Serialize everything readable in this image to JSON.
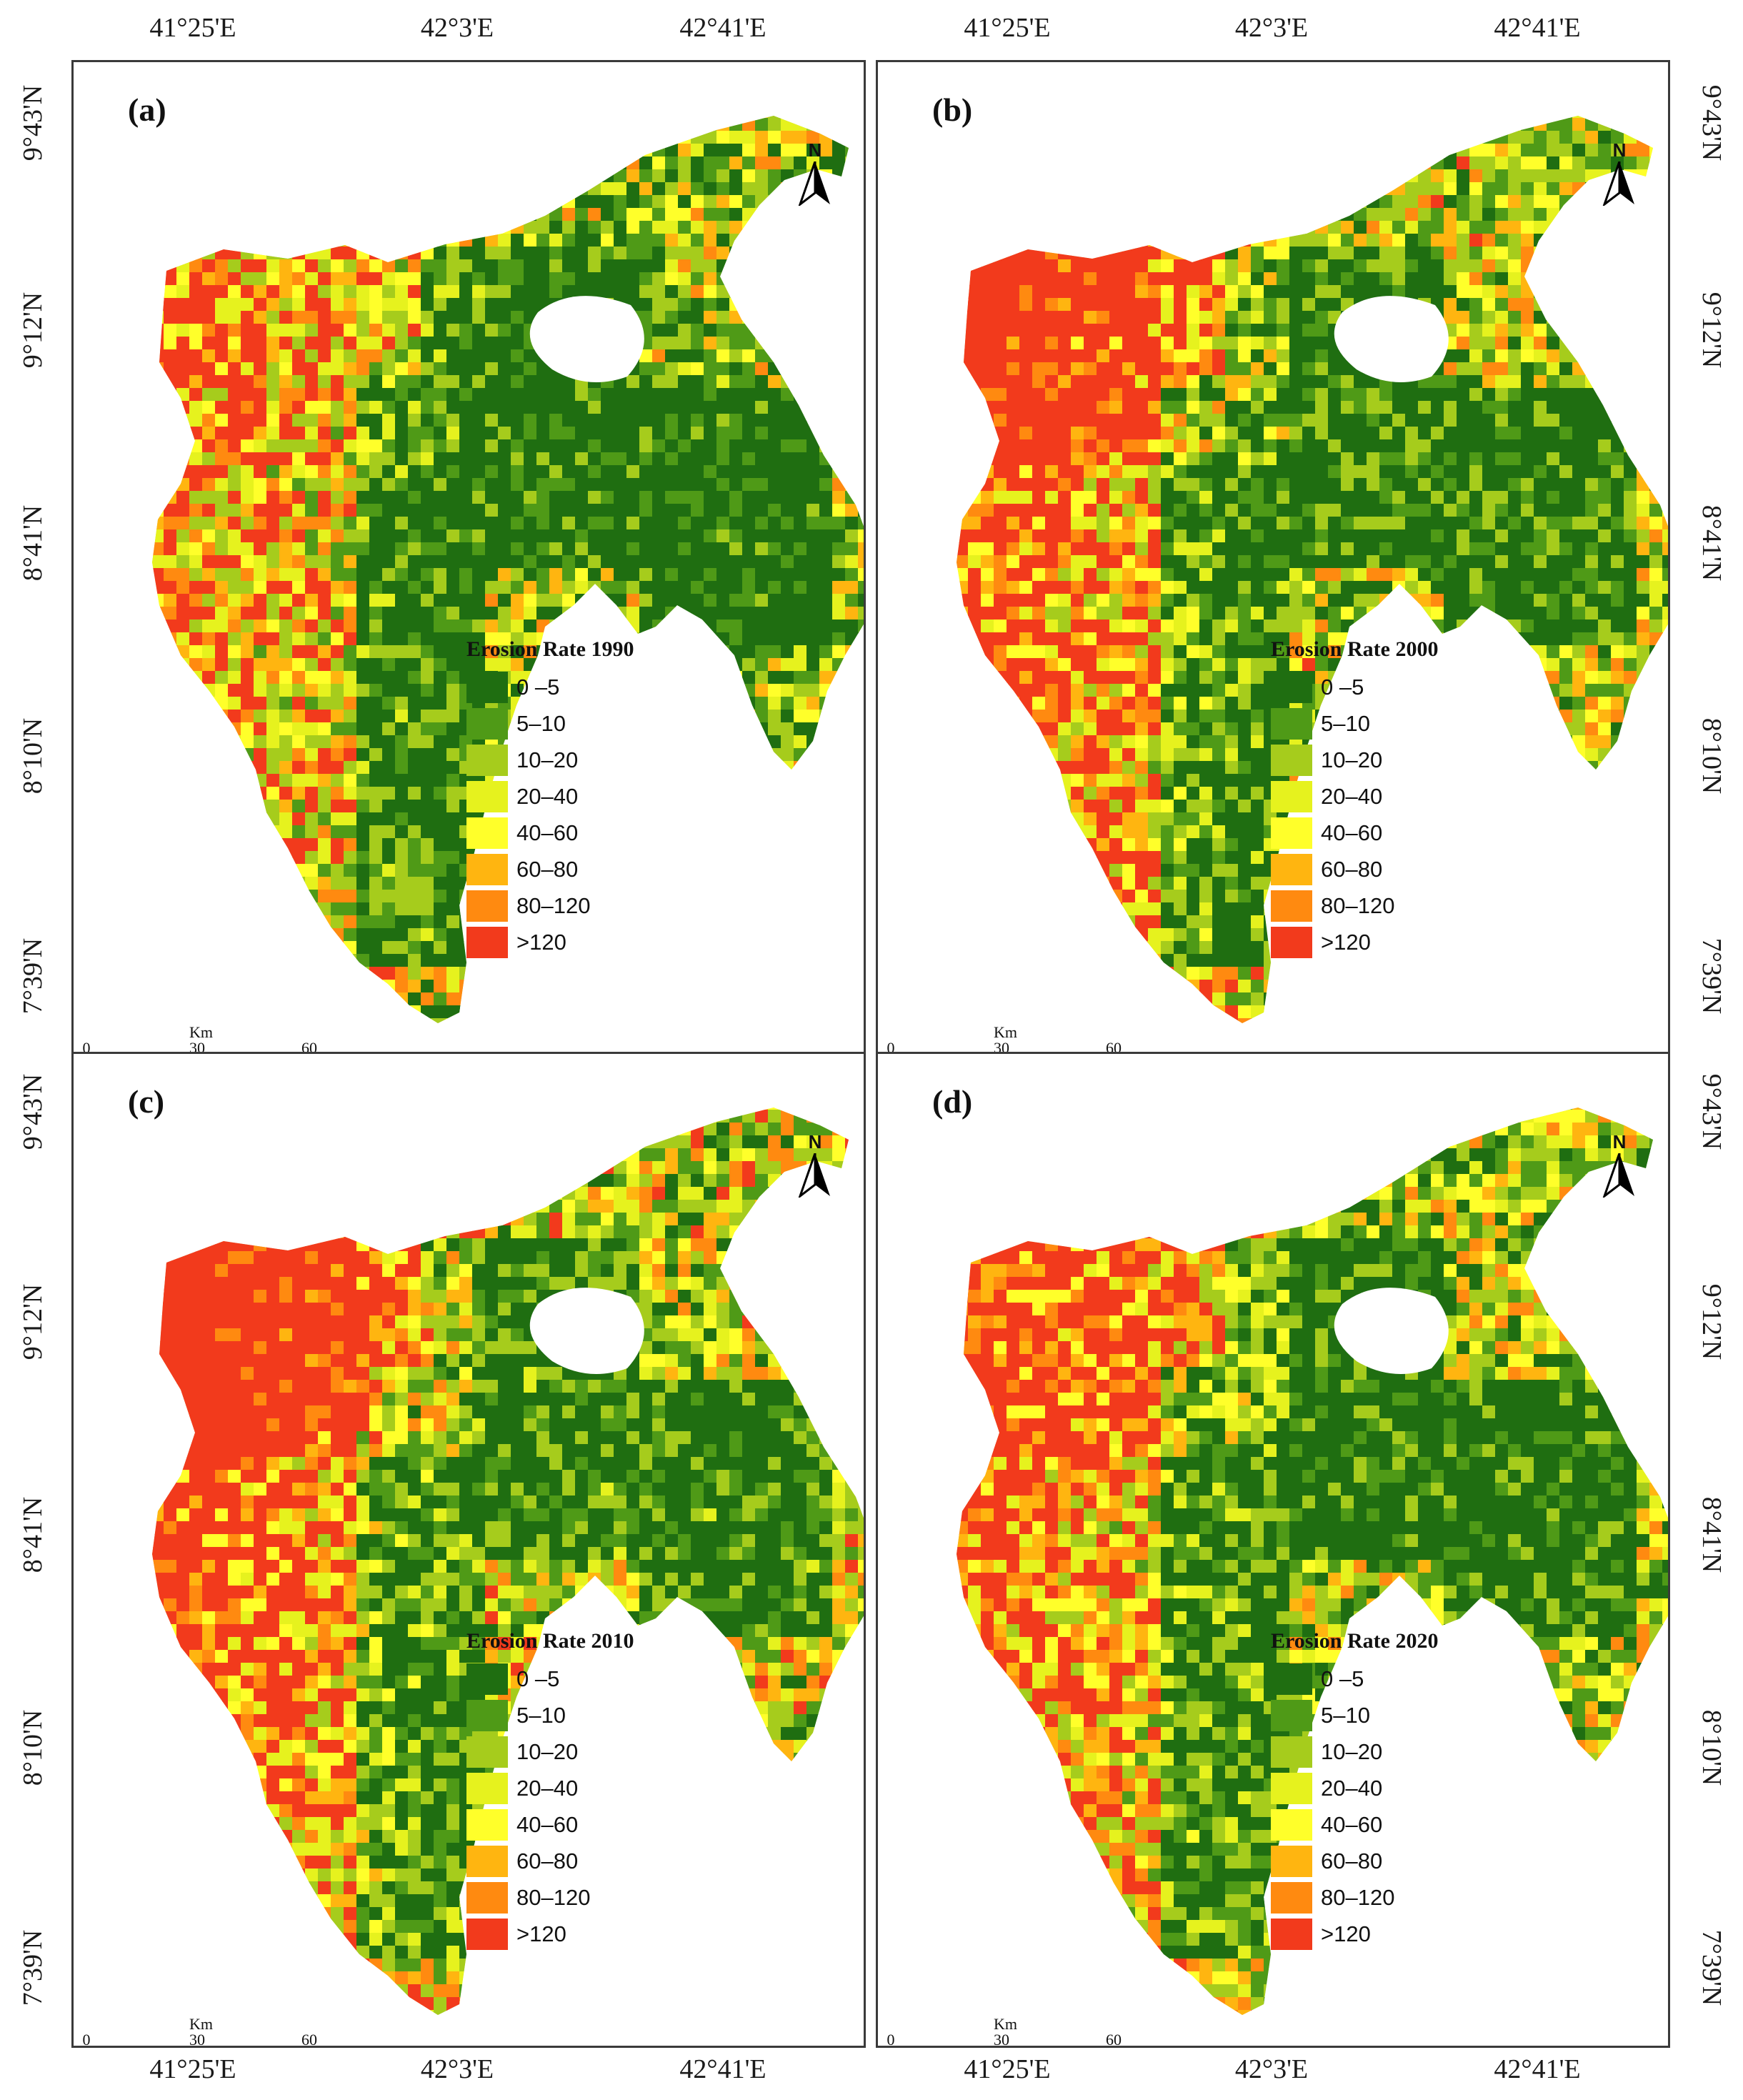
{
  "top_longitude_labels": [
    "41°25'E",
    "42°3'E",
    "42°41'E"
  ],
  "bottom_longitude_labels": [
    "41°25'E",
    "42°3'E",
    "42°41'E"
  ],
  "left_latitude_labels": [
    "9°43'N",
    "9°12'N",
    "8°41'N",
    "8°10'N",
    "7°39'N"
  ],
  "right_latitude_labels": [
    "9°43'N",
    "9°12'N",
    "8°41'N",
    "8°10'N",
    "7°39'N"
  ],
  "north_arrow": {
    "label": "N",
    "icon": "north-arrow-icon"
  },
  "scale": {
    "unit": "Km",
    "ticks": [
      "0",
      "30",
      "60"
    ]
  },
  "legend_classes": [
    {
      "label": "0 –5",
      "color": "#1f6e11"
    },
    {
      "label": "5–10",
      "color": "#4f9a17"
    },
    {
      "label": "10–20",
      "color": "#a6cc1c"
    },
    {
      "label": "20–40",
      "color": "#e6f21e"
    },
    {
      "label": "40–60",
      "color": "#ffff2a"
    },
    {
      "label": "60–80",
      "color": "#ffb510"
    },
    {
      "label": "80–120",
      "color": "#ff8a10"
    },
    {
      "label": ">120",
      "color": "#f23a1c"
    }
  ],
  "panels": [
    {
      "label": "(a)",
      "legend_title": "Erosion Rate 1990",
      "severity": 0.25
    },
    {
      "label": "(b)",
      "legend_title": "Erosion Rate 2000",
      "severity": 0.5
    },
    {
      "label": "(c)",
      "legend_title": "Erosion Rate 2010",
      "severity": 0.6
    },
    {
      "label": "(d)",
      "legend_title": "Erosion Rate 2020",
      "severity": 0.4
    }
  ]
}
